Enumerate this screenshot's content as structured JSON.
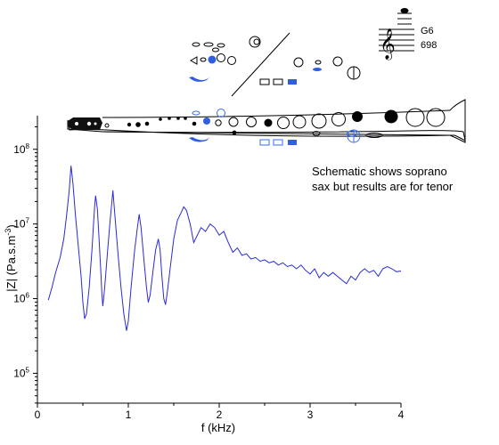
{
  "colors": {
    "curve": "#2a2ad8",
    "key_blue": "#2f5fe0",
    "outline_blue": "#3a6ee6",
    "ink": "#000000"
  },
  "note": {
    "key": "G6",
    "frequency": "698",
    "caption_line1": "Schematic shows soprano",
    "caption_line2": "sax but results are for tenor"
  },
  "chart_data": {
    "type": "line",
    "xlabel": "f (kHz)",
    "ylabel_main": "|Z| (Pa.s.m",
    "ylabel_sup": "-3",
    "ylabel_end": ")",
    "x_ticks": [
      "0",
      "1",
      "2",
      "3",
      "4"
    ],
    "y_ticks": [
      {
        "base": "10",
        "exp": "5"
      },
      {
        "base": "10",
        "exp": "6"
      },
      {
        "base": "10",
        "exp": "7"
      },
      {
        "base": "10",
        "exp": "8"
      }
    ],
    "xlim": [
      0,
      4
    ],
    "ylim_log10": [
      4.6,
      8.45
    ],
    "y_scale": "log",
    "grid": false,
    "series": [
      {
        "points": [
          [
            0.12,
            5.98
          ],
          [
            0.16,
            6.15
          ],
          [
            0.2,
            6.35
          ],
          [
            0.25,
            6.55
          ],
          [
            0.29,
            6.8
          ],
          [
            0.32,
            7.1
          ],
          [
            0.35,
            7.45
          ],
          [
            0.37,
            7.78
          ],
          [
            0.39,
            7.55
          ],
          [
            0.42,
            7.1
          ],
          [
            0.45,
            6.7
          ],
          [
            0.48,
            6.3
          ],
          [
            0.5,
            5.95
          ],
          [
            0.52,
            5.73
          ],
          [
            0.54,
            5.8
          ],
          [
            0.57,
            6.15
          ],
          [
            0.6,
            6.65
          ],
          [
            0.62,
            7.05
          ],
          [
            0.63,
            7.25
          ],
          [
            0.64,
            7.38
          ],
          [
            0.66,
            7.2
          ],
          [
            0.68,
            6.75
          ],
          [
            0.7,
            6.3
          ],
          [
            0.71,
            6.05
          ],
          [
            0.72,
            5.9
          ],
          [
            0.74,
            6.15
          ],
          [
            0.77,
            6.6
          ],
          [
            0.8,
            7.05
          ],
          [
            0.82,
            7.3
          ],
          [
            0.83,
            7.45
          ],
          [
            0.84,
            7.3
          ],
          [
            0.86,
            7.0
          ],
          [
            0.89,
            6.55
          ],
          [
            0.92,
            6.15
          ],
          [
            0.95,
            5.8
          ],
          [
            0.98,
            5.57
          ],
          [
            1.0,
            5.7
          ],
          [
            1.03,
            6.15
          ],
          [
            1.07,
            6.65
          ],
          [
            1.1,
            6.95
          ],
          [
            1.12,
            7.13
          ],
          [
            1.14,
            6.95
          ],
          [
            1.17,
            6.55
          ],
          [
            1.2,
            6.15
          ],
          [
            1.22,
            5.95
          ],
          [
            1.24,
            6.05
          ],
          [
            1.27,
            6.35
          ],
          [
            1.3,
            6.65
          ],
          [
            1.33,
            6.8
          ],
          [
            1.35,
            6.65
          ],
          [
            1.37,
            6.3
          ],
          [
            1.39,
            6.0
          ],
          [
            1.41,
            5.92
          ],
          [
            1.43,
            6.1
          ],
          [
            1.46,
            6.4
          ],
          [
            1.5,
            6.8
          ],
          [
            1.54,
            7.05
          ],
          [
            1.58,
            7.15
          ],
          [
            1.61,
            7.23
          ],
          [
            1.64,
            7.18
          ],
          [
            1.68,
            7.0
          ],
          [
            1.72,
            6.75
          ],
          [
            1.76,
            6.85
          ],
          [
            1.8,
            6.95
          ],
          [
            1.85,
            6.9
          ],
          [
            1.9,
            7.0
          ],
          [
            1.95,
            6.95
          ],
          [
            2.0,
            6.85
          ],
          [
            2.05,
            6.9
          ],
          [
            2.1,
            6.75
          ],
          [
            2.15,
            6.62
          ],
          [
            2.2,
            6.68
          ],
          [
            2.25,
            6.58
          ],
          [
            2.3,
            6.6
          ],
          [
            2.35,
            6.53
          ],
          [
            2.4,
            6.55
          ],
          [
            2.45,
            6.5
          ],
          [
            2.5,
            6.52
          ],
          [
            2.55,
            6.48
          ],
          [
            2.6,
            6.5
          ],
          [
            2.65,
            6.45
          ],
          [
            2.7,
            6.48
          ],
          [
            2.75,
            6.43
          ],
          [
            2.8,
            6.45
          ],
          [
            2.85,
            6.4
          ],
          [
            2.9,
            6.45
          ],
          [
            2.95,
            6.38
          ],
          [
            3.0,
            6.33
          ],
          [
            3.05,
            6.4
          ],
          [
            3.1,
            6.28
          ],
          [
            3.15,
            6.35
          ],
          [
            3.2,
            6.3
          ],
          [
            3.25,
            6.35
          ],
          [
            3.3,
            6.3
          ],
          [
            3.35,
            6.25
          ],
          [
            3.4,
            6.2
          ],
          [
            3.45,
            6.3
          ],
          [
            3.5,
            6.25
          ],
          [
            3.55,
            6.35
          ],
          [
            3.6,
            6.4
          ],
          [
            3.65,
            6.35
          ],
          [
            3.7,
            6.38
          ],
          [
            3.75,
            6.3
          ],
          [
            3.8,
            6.4
          ],
          [
            3.85,
            6.43
          ],
          [
            3.9,
            6.4
          ],
          [
            3.95,
            6.36
          ],
          [
            4.0,
            6.37
          ]
        ]
      }
    ]
  }
}
